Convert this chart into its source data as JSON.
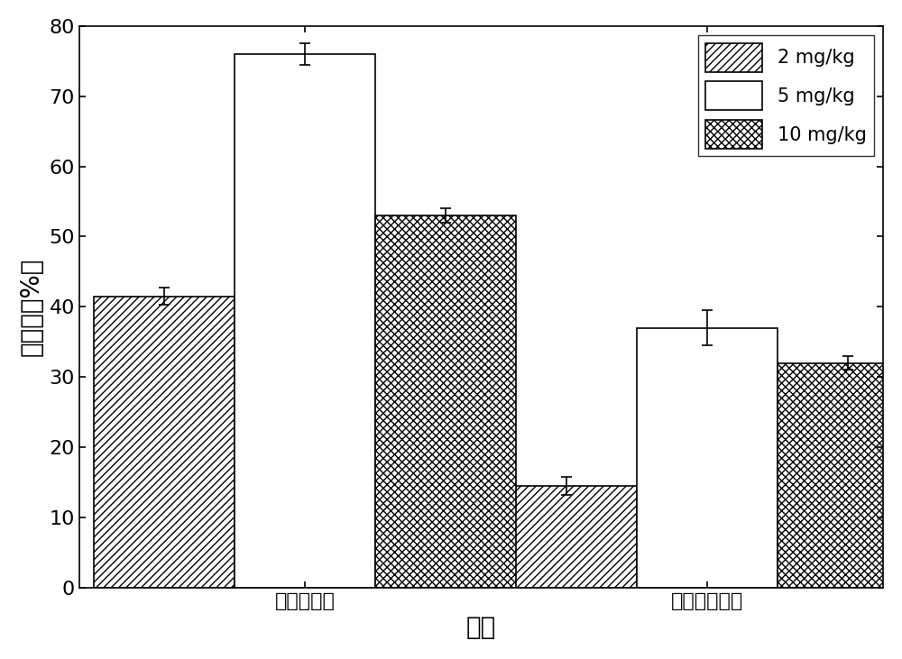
{
  "groups": [
    "酯香微杆菌",
    "鲍氏不动杆菌"
  ],
  "series": [
    "2 mg/kg",
    "5 mg/kg",
    "10 mg/kg"
  ],
  "values": [
    [
      41.5,
      76.0,
      53.0
    ],
    [
      14.5,
      37.0,
      32.0
    ]
  ],
  "errors": [
    [
      1.2,
      1.5,
      1.0
    ],
    [
      1.3,
      2.5,
      1.0
    ]
  ],
  "xlabel": "菌株",
  "ylabel": "降解率（%）",
  "ylim": [
    0,
    80
  ],
  "yticks": [
    0,
    10,
    20,
    30,
    40,
    50,
    60,
    70,
    80
  ],
  "bar_width": 0.28,
  "group_centers": [
    0.35,
    1.15
  ],
  "hatch_patterns": [
    "////",
    "",
    "xxxx"
  ],
  "facecolors": [
    "white",
    "white",
    "white"
  ],
  "edgecolors": [
    "black",
    "black",
    "black"
  ],
  "legend_fontsize": 15,
  "axis_fontsize": 20,
  "tick_fontsize": 16,
  "title_fontsize": 14
}
